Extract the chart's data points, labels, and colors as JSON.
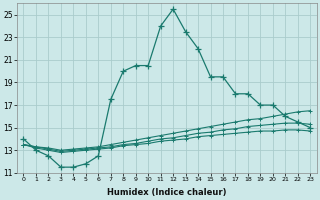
{
  "xlabel": "Humidex (Indice chaleur)",
  "curve_x": [
    0,
    1,
    2,
    3,
    4,
    5,
    6,
    7,
    8,
    9,
    10,
    11,
    12,
    13,
    14,
    15,
    16,
    17,
    18,
    19,
    20,
    21,
    22,
    23
  ],
  "curve_y": [
    14.0,
    13.0,
    12.5,
    11.5,
    11.5,
    11.8,
    12.5,
    17.5,
    20.0,
    20.5,
    20.5,
    24.0,
    25.5,
    23.5,
    22.0,
    19.5,
    19.5,
    18.0,
    18.0,
    17.0,
    17.0,
    16.0,
    15.5,
    15.0
  ],
  "line1_x": [
    0,
    1,
    2,
    3,
    4,
    5,
    6,
    7,
    8,
    9,
    10,
    11,
    12,
    13,
    14,
    15,
    16,
    17,
    18,
    19,
    20,
    21,
    22,
    23
  ],
  "line1_y": [
    13.5,
    13.3,
    13.2,
    13.0,
    13.1,
    13.2,
    13.3,
    13.5,
    13.7,
    13.9,
    14.1,
    14.3,
    14.5,
    14.7,
    14.9,
    15.1,
    15.3,
    15.5,
    15.7,
    15.8,
    16.0,
    16.2,
    16.4,
    16.5
  ],
  "line2_x": [
    0,
    1,
    2,
    3,
    4,
    5,
    6,
    7,
    8,
    9,
    10,
    11,
    12,
    13,
    14,
    15,
    16,
    17,
    18,
    19,
    20,
    21,
    22,
    23
  ],
  "line2_y": [
    13.5,
    13.3,
    13.1,
    12.9,
    13.0,
    13.1,
    13.2,
    13.3,
    13.5,
    13.6,
    13.8,
    14.0,
    14.1,
    14.3,
    14.5,
    14.6,
    14.8,
    14.9,
    15.1,
    15.2,
    15.3,
    15.4,
    15.4,
    15.3
  ],
  "line3_x": [
    0,
    1,
    2,
    3,
    4,
    5,
    6,
    7,
    8,
    9,
    10,
    11,
    12,
    13,
    14,
    15,
    16,
    17,
    18,
    19,
    20,
    21,
    22,
    23
  ],
  "line3_y": [
    13.5,
    13.2,
    13.0,
    12.8,
    12.9,
    13.0,
    13.1,
    13.2,
    13.4,
    13.5,
    13.6,
    13.8,
    13.9,
    14.0,
    14.2,
    14.3,
    14.4,
    14.5,
    14.6,
    14.7,
    14.7,
    14.8,
    14.8,
    14.7
  ],
  "ylim": [
    11,
    26
  ],
  "xlim": [
    -0.5,
    23.5
  ],
  "yticks": [
    11,
    13,
    15,
    17,
    19,
    21,
    23,
    25
  ],
  "xticks": [
    0,
    1,
    2,
    3,
    4,
    5,
    6,
    7,
    8,
    9,
    10,
    11,
    12,
    13,
    14,
    15,
    16,
    17,
    18,
    19,
    20,
    21,
    22,
    23
  ],
  "color": "#1a7a6e",
  "bg_color": "#cce8e8",
  "grid_color": "#aacccc"
}
